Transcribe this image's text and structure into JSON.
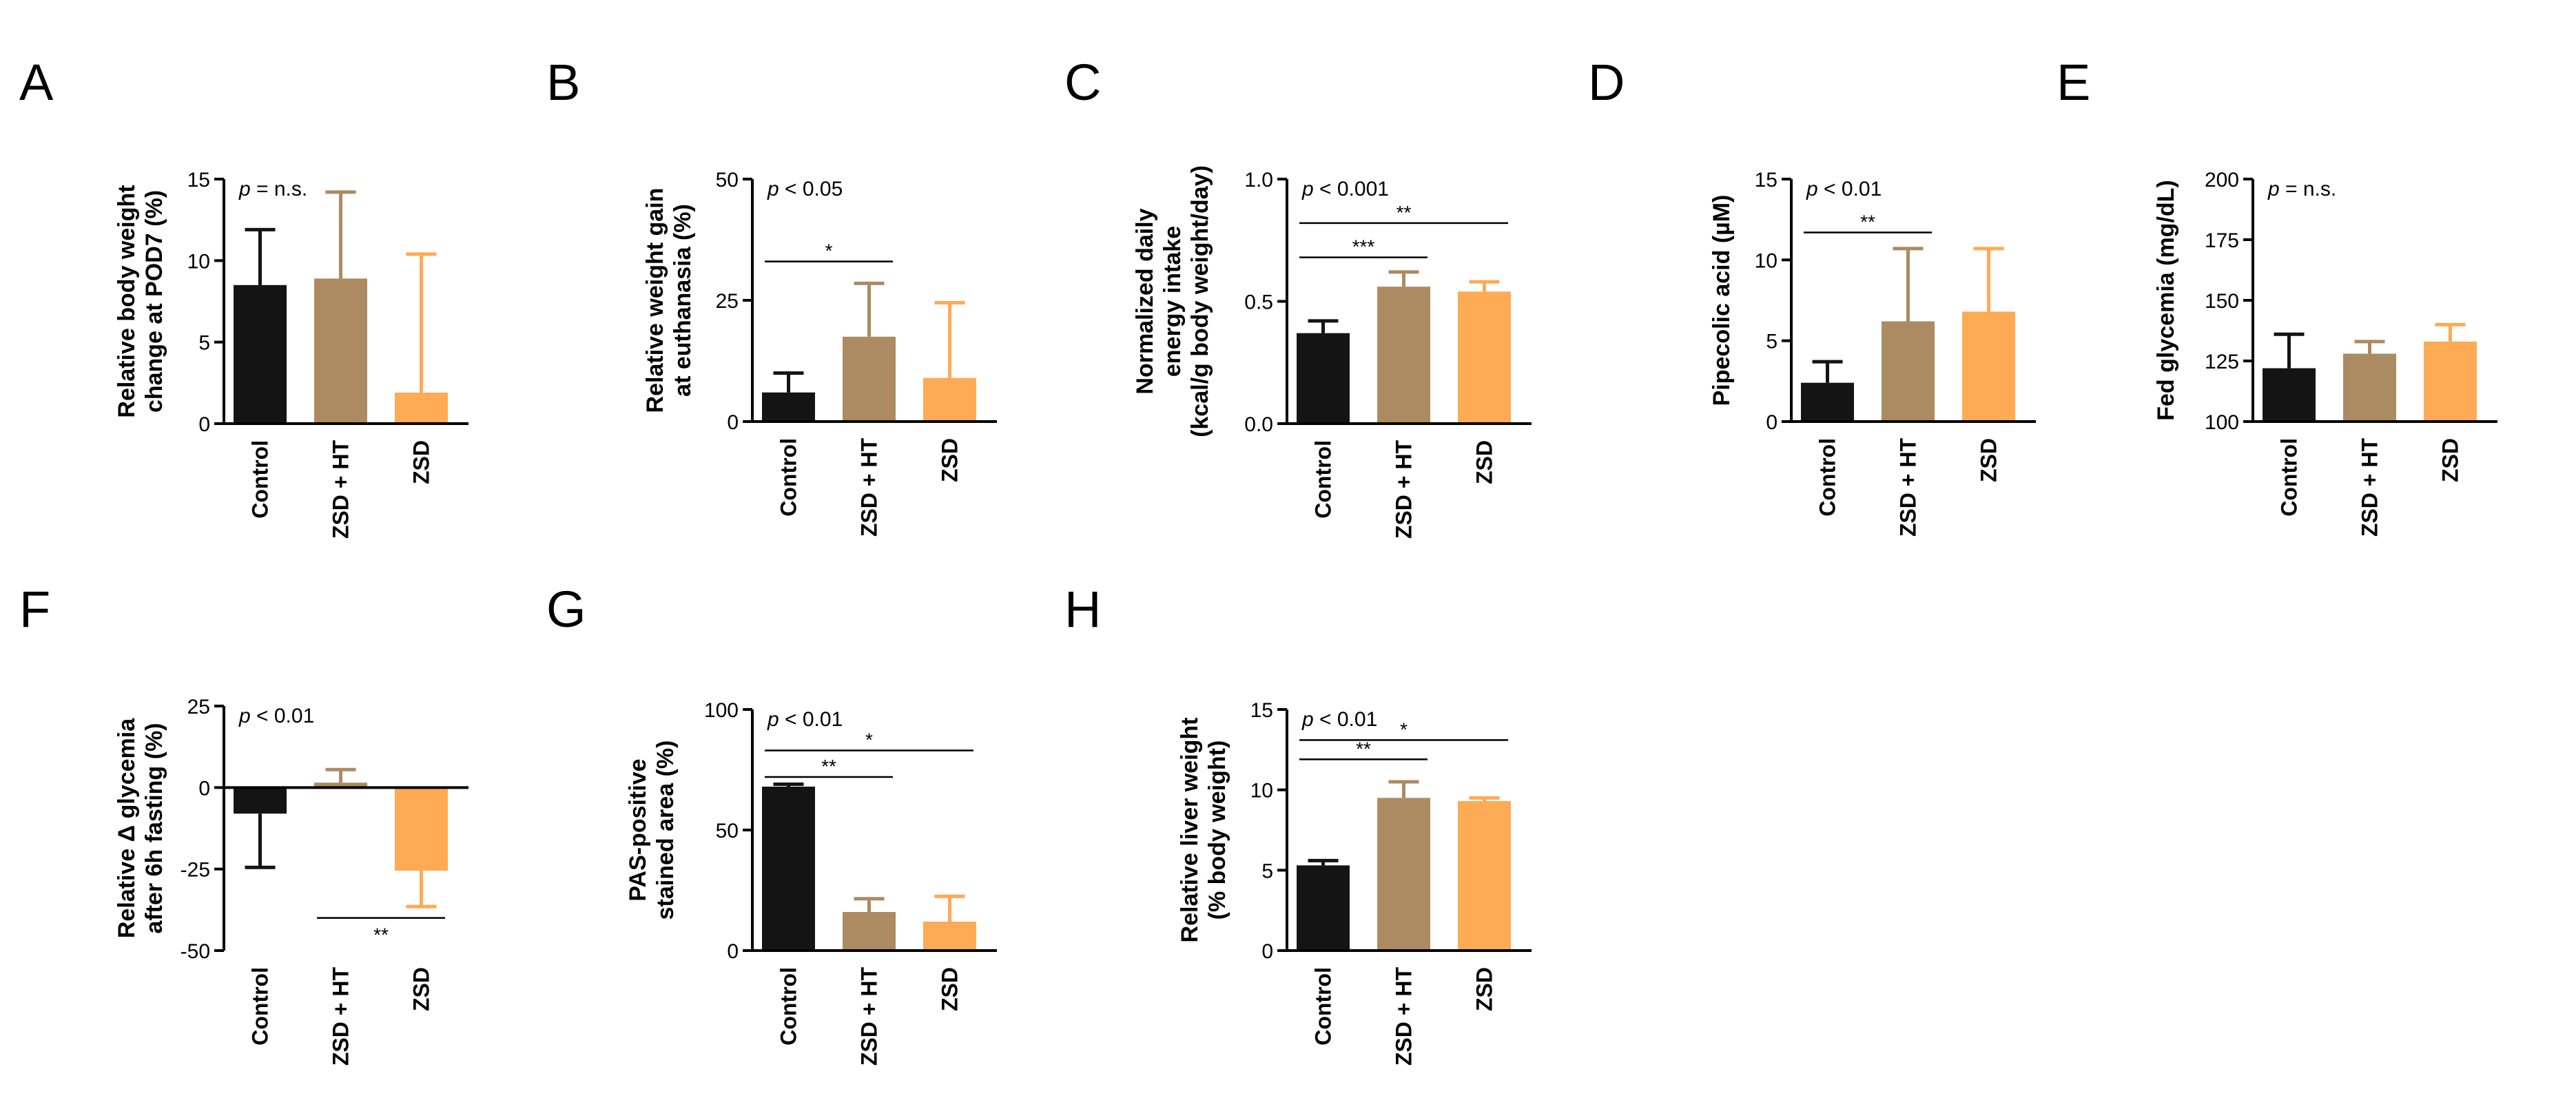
{
  "colors": {
    "Control": "#141414",
    "ZSD + HT": "#ac8b63",
    "ZSD": "#ffaa55"
  },
  "chart_data": [
    {
      "letter": "A",
      "type": "bar",
      "title": "",
      "categories": [
        "Control",
        "ZSD + HT",
        "ZSD"
      ],
      "values": [
        8.5,
        8.9,
        1.9
      ],
      "errors": [
        3.4,
        5.3,
        8.5
      ],
      "ylabel": [
        "Relative body weight",
        "change at POD7 (%)"
      ],
      "ylim": [
        0,
        15
      ],
      "yticks": [
        0,
        5,
        10,
        15
      ],
      "tick_labels": [
        "0",
        "5",
        "10",
        "15"
      ],
      "p_prefix": "p",
      "p_text": " = n.s.",
      "sig": []
    },
    {
      "letter": "B",
      "type": "bar",
      "title": "",
      "categories": [
        "Control",
        "ZSD + HT",
        "ZSD"
      ],
      "values": [
        6,
        17.5,
        9
      ],
      "errors": [
        4,
        11,
        15.5
      ],
      "ylabel": [
        "Relative weight gain",
        "at euthanasia (%)"
      ],
      "ylim": [
        0,
        50
      ],
      "yticks": [
        0,
        25,
        50
      ],
      "tick_labels": [
        "0",
        "25",
        "50"
      ],
      "p_prefix": "p",
      "p_text": " < 0.05",
      "sig": [
        {
          "from": 0,
          "to": 1,
          "y": 33,
          "stars": "*"
        }
      ]
    },
    {
      "letter": "C",
      "type": "bar",
      "title": "",
      "categories": [
        "Control",
        "ZSD + HT",
        "ZSD"
      ],
      "values": [
        0.37,
        0.56,
        0.54
      ],
      "errors": [
        0.05,
        0.06,
        0.04
      ],
      "ylabel": [
        "Normalized daily",
        "energy intake",
        "(kcal/g body weight/day)"
      ],
      "ylim": [
        0,
        1
      ],
      "yticks": [
        0,
        0.5,
        1
      ],
      "tick_labels": [
        "0.0",
        "0.5",
        "1.0"
      ],
      "p_prefix": "p",
      "p_text": " < 0.001",
      "sig": [
        {
          "from": 0,
          "to": 1,
          "y": 0.68,
          "stars": "***"
        },
        {
          "from": 0,
          "to": 2,
          "y": 0.82,
          "stars": "**"
        }
      ]
    },
    {
      "letter": "D",
      "type": "bar",
      "title": "",
      "categories": [
        "Control",
        "ZSD + HT",
        "ZSD"
      ],
      "values": [
        2.4,
        6.2,
        6.8
      ],
      "errors": [
        1.3,
        4.5,
        3.9
      ],
      "ylabel": [
        "Pipecolic acid (µM)"
      ],
      "ylim": [
        0,
        15
      ],
      "yticks": [
        0,
        5,
        10,
        15
      ],
      "tick_labels": [
        "0",
        "5",
        "10",
        "15"
      ],
      "p_prefix": "p",
      "p_text": " < 0.01",
      "sig": [
        {
          "from": 0,
          "to": 1,
          "y": 11.7,
          "stars": "**"
        }
      ]
    },
    {
      "letter": "E",
      "type": "bar",
      "title": "",
      "categories": [
        "Control",
        "ZSD + HT",
        "ZSD"
      ],
      "values": [
        122,
        128,
        133
      ],
      "errors": [
        14,
        5,
        7
      ],
      "ylabel": [
        "Fed glycemia (mg/dL)"
      ],
      "ylim": [
        100,
        200
      ],
      "yticks": [
        100,
        125,
        150,
        175,
        200
      ],
      "tick_labels": [
        "100",
        "125",
        "150",
        "175",
        "200"
      ],
      "p_prefix": "p",
      "p_text": " = n.s.",
      "sig": []
    },
    {
      "letter": "F",
      "type": "bar",
      "title": "",
      "categories": [
        "Control",
        "ZSD + HT",
        "ZSD"
      ],
      "values": [
        -8,
        1.5,
        -25.5
      ],
      "errors": [
        16.5,
        4,
        11
      ],
      "ylabel": [
        "Relative Δ glycemia",
        "after 6h fasting (%)"
      ],
      "ylim": [
        -50,
        25
      ],
      "yticks": [
        -50,
        -25,
        0,
        25
      ],
      "tick_labels": [
        "-50",
        "-25",
        "0",
        "25"
      ],
      "p_prefix": "p",
      "p_text": " < 0.01",
      "sig": [
        {
          "from": 1,
          "to": 2,
          "y": -40,
          "stars": "**",
          "below": true
        }
      ]
    },
    {
      "letter": "G",
      "type": "bar",
      "title": "",
      "categories": [
        "Control",
        "ZSD + HT",
        "ZSD"
      ],
      "values": [
        68,
        16,
        12
      ],
      "errors": [
        1,
        5.5,
        10.5
      ],
      "ylabel": [
        "PAS-positive",
        "stained area (%)"
      ],
      "ylim": [
        0,
        100
      ],
      "yticks": [
        0,
        50,
        100
      ],
      "tick_labels": [
        "0",
        "50",
        "100"
      ],
      "p_prefix": "p",
      "p_text": " < 0.01",
      "sig": [
        {
          "from": 0,
          "to": 1,
          "y": 72,
          "stars": "**"
        },
        {
          "from": 0,
          "to": 2,
          "y": 83,
          "stars": "*"
        }
      ]
    },
    {
      "letter": "H",
      "type": "bar",
      "title": "",
      "categories": [
        "Control",
        "ZSD + HT",
        "ZSD"
      ],
      "values": [
        5.3,
        9.5,
        9.3
      ],
      "errors": [
        0.3,
        1.0,
        0.2
      ],
      "ylabel": [
        "Relative liver weight",
        "(% body weight)"
      ],
      "ylim": [
        0,
        15
      ],
      "yticks": [
        0,
        5,
        10,
        15
      ],
      "tick_labels": [
        "0",
        "5",
        "10",
        "15"
      ],
      "p_prefix": "p",
      "p_text": " < 0.01",
      "sig": [
        {
          "from": 0,
          "to": 1,
          "y": 11.9,
          "stars": "**"
        },
        {
          "from": 0,
          "to": 2,
          "y": 13.1,
          "stars": "*"
        }
      ]
    }
  ]
}
